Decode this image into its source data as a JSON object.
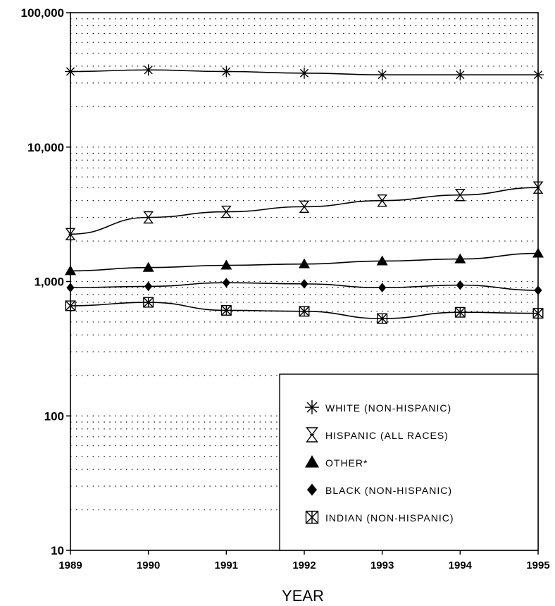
{
  "chart_data": {
    "type": "line",
    "title": "",
    "xlabel": "YEAR",
    "ylabel": "",
    "x": [
      1989,
      1990,
      1991,
      1992,
      1993,
      1994,
      1995
    ],
    "xlim": [
      1989,
      1995
    ],
    "ylim": [
      10,
      100000
    ],
    "yscale": "log",
    "yticks": [
      10,
      100,
      1000,
      10000,
      100000
    ],
    "ytick_labels": [
      "10",
      "100",
      "1,000",
      "10,000",
      "100,000"
    ],
    "xtick_labels": [
      "1989",
      "1990",
      "1991",
      "1992",
      "1993",
      "1994",
      "1995"
    ],
    "grid": true,
    "legend_position": "bottom-right",
    "series": [
      {
        "name": "WHITE (NON-HISPANIC)",
        "marker": "asterisk-icon",
        "values": [
          36500,
          37500,
          36500,
          35500,
          34500,
          34500,
          34500
        ]
      },
      {
        "name": "HISPANIC (ALL RACES)",
        "marker": "hourglass-icon",
        "values": [
          2250,
          3000,
          3300,
          3600,
          4000,
          4400,
          5000
        ]
      },
      {
        "name": "OTHER*",
        "marker": "triangle-icon",
        "values": [
          1200,
          1270,
          1320,
          1350,
          1420,
          1470,
          1620
        ]
      },
      {
        "name": "BLACK (NON-HISPANIC)",
        "marker": "diamond-icon",
        "values": [
          900,
          920,
          980,
          960,
          900,
          940,
          860
        ]
      },
      {
        "name": "INDIAN (NON-HISPANIC)",
        "marker": "boxed-x-icon",
        "values": [
          660,
          700,
          610,
          600,
          530,
          590,
          580
        ]
      }
    ]
  }
}
